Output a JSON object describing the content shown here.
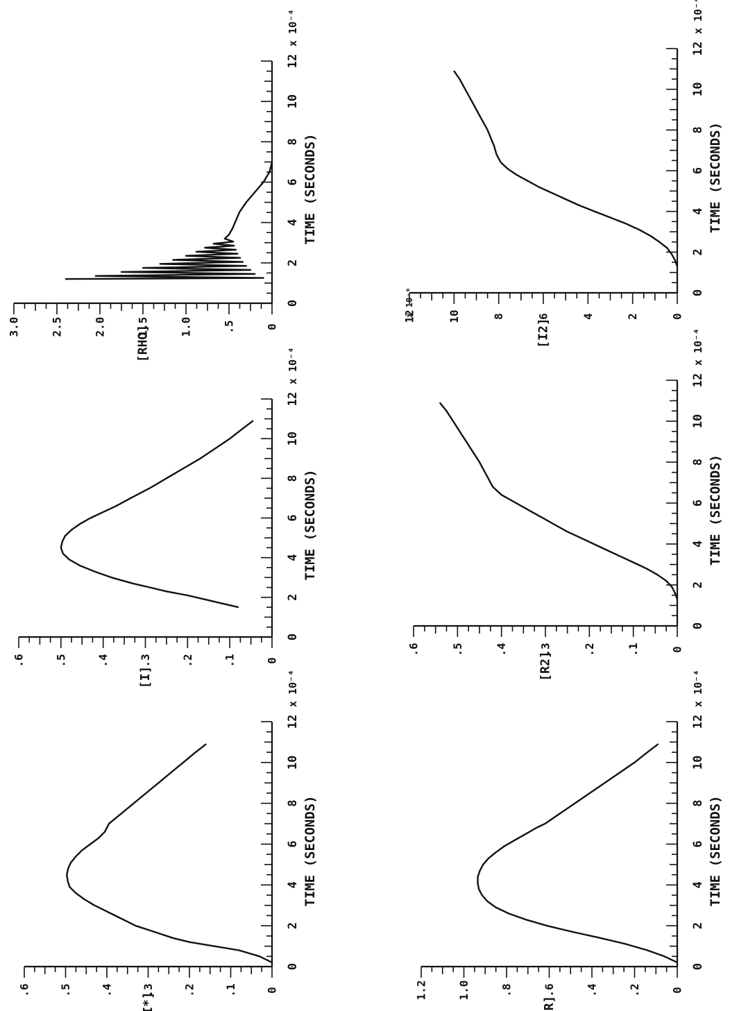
{
  "chart_data": [
    {
      "type": "line",
      "id": "ci-star",
      "ylabel": "[I*]",
      "xlabel": "TIME (SECONDS)",
      "x_multiplier": "x 10⁻⁴",
      "xlim": [
        0,
        12
      ],
      "ylim": [
        0,
        0.6
      ],
      "x_ticks": [
        "0",
        "2",
        "4",
        "6",
        "8",
        "10",
        "12"
      ],
      "y_ticks": [
        "0",
        ".1",
        ".2",
        ".3",
        ".4",
        ".5",
        ".6"
      ],
      "grid": false,
      "series": [
        {
          "x": [
            0.2,
            0.5,
            0.8,
            1.0,
            1.2,
            1.4,
            1.6,
            1.8,
            2.0,
            2.2,
            2.5,
            2.8,
            3.0,
            3.3,
            3.6,
            3.9,
            4.2,
            4.5,
            4.8,
            5.1,
            5.4,
            5.7,
            6.0,
            6.3,
            6.6,
            7.0,
            7.5,
            8.0,
            8.5,
            9.0,
            9.5,
            10.0,
            10.5,
            10.9
          ],
          "y": [
            0.0,
            0.03,
            0.08,
            0.14,
            0.2,
            0.24,
            0.27,
            0.3,
            0.33,
            0.35,
            0.38,
            0.41,
            0.43,
            0.455,
            0.475,
            0.49,
            0.495,
            0.497,
            0.494,
            0.487,
            0.475,
            0.46,
            0.44,
            0.42,
            0.405,
            0.395,
            0.365,
            0.335,
            0.305,
            0.275,
            0.245,
            0.215,
            0.185,
            0.16
          ]
        }
      ]
    },
    {
      "type": "line",
      "id": "ci",
      "ylabel": "[I]",
      "xlabel": "TIME (SECONDS)",
      "x_multiplier": "x 10⁻⁴",
      "xlim": [
        0,
        12
      ],
      "ylim": [
        0,
        0.6
      ],
      "x_ticks": [
        "0",
        "2",
        "4",
        "6",
        "8",
        "10",
        "12"
      ],
      "y_ticks": [
        "0",
        ".1",
        ".2",
        ".3",
        ".4",
        ".5",
        ".6"
      ],
      "grid": false,
      "series": [
        {
          "x": [
            1.5,
            1.7,
            1.9,
            2.1,
            2.3,
            2.5,
            2.7,
            3.0,
            3.3,
            3.6,
            3.9,
            4.2,
            4.5,
            4.8,
            5.1,
            5.4,
            5.7,
            6.0,
            6.3,
            6.6,
            7.0,
            7.5,
            8.0,
            8.5,
            9.0,
            9.5,
            10.0,
            10.5,
            10.9
          ],
          "y": [
            0.08,
            0.12,
            0.16,
            0.2,
            0.25,
            0.29,
            0.33,
            0.38,
            0.42,
            0.455,
            0.48,
            0.495,
            0.5,
            0.497,
            0.49,
            0.475,
            0.455,
            0.43,
            0.4,
            0.37,
            0.335,
            0.29,
            0.25,
            0.21,
            0.17,
            0.135,
            0.1,
            0.07,
            0.045
          ]
        }
      ]
    },
    {
      "type": "line",
      "id": "crho",
      "ylabel": "[RHO]",
      "xlabel": "TIME (SECONDS)",
      "x_multiplier": "x 10⁻⁴",
      "xlim": [
        0,
        12
      ],
      "ylim": [
        0,
        3.0
      ],
      "x_ticks": [
        "0",
        "2",
        "4",
        "6",
        "8",
        "10",
        "12"
      ],
      "y_ticks": [
        "0",
        ".5",
        "1.0",
        "1.5",
        "2.0",
        "2.5",
        "3.0"
      ],
      "grid": false,
      "series": [
        {
          "x": [
            1.2,
            1.25,
            1.35,
            1.45,
            1.55,
            1.65,
            1.75,
            1.85,
            1.95,
            2.05,
            2.15,
            2.25,
            2.35,
            2.45,
            2.55,
            2.65,
            2.75,
            2.85,
            2.95,
            3.05,
            3.2,
            3.4,
            3.7,
            4.0,
            4.5,
            5.0,
            5.5,
            6.0,
            6.5,
            7.0
          ],
          "y": [
            2.4,
            0.1,
            2.05,
            0.2,
            1.75,
            0.25,
            1.5,
            0.3,
            1.3,
            0.34,
            1.15,
            0.37,
            1.0,
            0.4,
            0.88,
            0.42,
            0.78,
            0.44,
            0.68,
            0.45,
            0.55,
            0.5,
            0.46,
            0.43,
            0.38,
            0.3,
            0.2,
            0.1,
            0.03,
            0.0
          ]
        }
      ]
    },
    {
      "type": "line",
      "id": "cr",
      "ylabel": "[R]",
      "xlabel": "TIME (SECONDS)",
      "x_multiplier": "x 10⁻⁴",
      "xlim": [
        0,
        12
      ],
      "ylim": [
        0,
        1.2
      ],
      "x_ticks": [
        "0",
        "2",
        "4",
        "6",
        "8",
        "10",
        "12"
      ],
      "y_ticks": [
        "0",
        ".2",
        ".4",
        ".6",
        ".8",
        "1.0",
        "1.2"
      ],
      "grid": false,
      "series": [
        {
          "x": [
            0.2,
            0.5,
            0.8,
            1.1,
            1.4,
            1.7,
            2.0,
            2.3,
            2.6,
            2.9,
            3.2,
            3.5,
            3.8,
            4.1,
            4.4,
            4.7,
            5.0,
            5.3,
            5.6,
            5.9,
            6.2,
            6.5,
            6.8,
            7.0,
            7.5,
            8.0,
            8.5,
            9.0,
            9.5,
            10.0,
            10.5,
            10.9
          ],
          "y": [
            0.0,
            0.06,
            0.14,
            0.24,
            0.36,
            0.49,
            0.61,
            0.71,
            0.79,
            0.85,
            0.89,
            0.915,
            0.93,
            0.935,
            0.935,
            0.925,
            0.91,
            0.885,
            0.85,
            0.81,
            0.76,
            0.71,
            0.66,
            0.62,
            0.55,
            0.48,
            0.41,
            0.34,
            0.27,
            0.2,
            0.14,
            0.09
          ]
        }
      ]
    },
    {
      "type": "line",
      "id": "cr2",
      "ylabel": "[R2]",
      "xlabel": "TIME (SECONDS)",
      "x_multiplier": "x 10⁻⁴",
      "xlim": [
        0,
        12
      ],
      "ylim": [
        0,
        0.6
      ],
      "x_ticks": [
        "0",
        "2",
        "4",
        "6",
        "8",
        "10",
        "12"
      ],
      "y_ticks": [
        "0",
        ".1",
        ".2",
        ".3",
        ".4",
        ".5",
        ".6"
      ],
      "grid": false,
      "series": [
        {
          "x": [
            1.3,
            1.6,
            1.9,
            2.2,
            2.5,
            2.8,
            3.1,
            3.4,
            3.7,
            4.0,
            4.3,
            4.6,
            4.9,
            5.2,
            5.5,
            5.8,
            6.1,
            6.4,
            6.8,
            7.2,
            7.6,
            8.0,
            8.5,
            9.0,
            9.5,
            10.0,
            10.5,
            10.9
          ],
          "y": [
            0.0,
            0.005,
            0.012,
            0.025,
            0.045,
            0.07,
            0.1,
            0.13,
            0.16,
            0.19,
            0.22,
            0.25,
            0.275,
            0.3,
            0.325,
            0.35,
            0.375,
            0.4,
            0.42,
            0.43,
            0.44,
            0.45,
            0.465,
            0.48,
            0.495,
            0.51,
            0.525,
            0.54
          ]
        }
      ]
    },
    {
      "type": "line",
      "id": "ci2",
      "ylabel": "[I2]",
      "xlabel": "TIME (SECONDS)",
      "x_multiplier": "x 10⁻⁴",
      "y_multiplier": "x 10⁻⁶",
      "xlim": [
        0,
        12
      ],
      "ylim": [
        0,
        12
      ],
      "x_ticks": [
        "0",
        "2",
        "4",
        "6",
        "8",
        "10",
        "12"
      ],
      "y_ticks": [
        "0",
        "2",
        "4",
        "6",
        "8",
        "10",
        "12"
      ],
      "grid": false,
      "series": [
        {
          "x": [
            1.3,
            1.6,
            1.9,
            2.2,
            2.5,
            2.8,
            3.1,
            3.4,
            3.7,
            4.0,
            4.3,
            4.6,
            4.9,
            5.2,
            5.5,
            5.8,
            6.1,
            6.4,
            6.8,
            7.2,
            7.6,
            8.0,
            8.5,
            9.0,
            9.5,
            10.0,
            10.5,
            10.9
          ],
          "y": [
            0.0,
            0.1,
            0.25,
            0.45,
            0.8,
            1.2,
            1.7,
            2.3,
            3.0,
            3.7,
            4.4,
            5.0,
            5.6,
            6.2,
            6.7,
            7.2,
            7.6,
            7.9,
            8.1,
            8.2,
            8.35,
            8.5,
            8.75,
            9.0,
            9.25,
            9.5,
            9.75,
            10.0
          ]
        }
      ]
    }
  ]
}
